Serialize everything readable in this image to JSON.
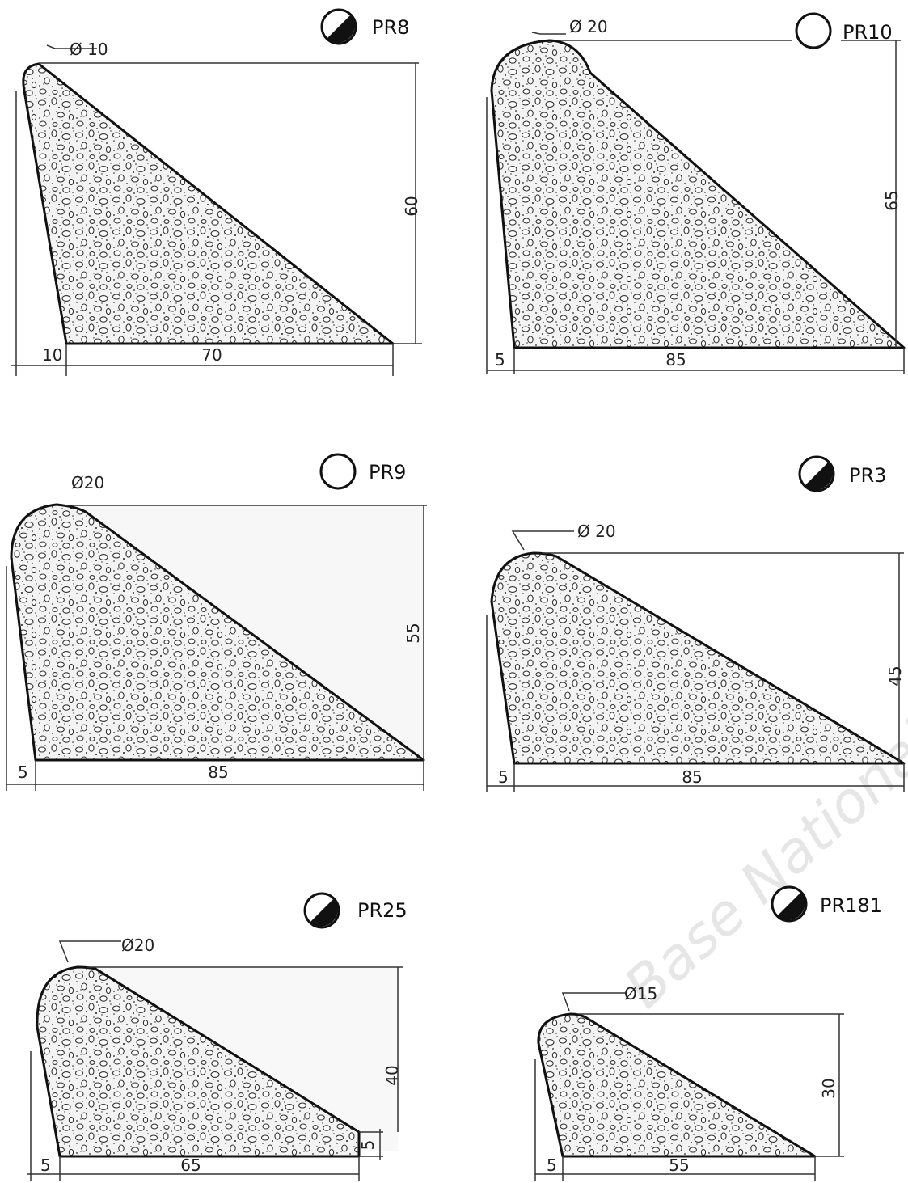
{
  "watermark": "Base Nationale",
  "profiles": [
    {
      "code": "PR8",
      "finish": "half",
      "radius_label": "Ø 10",
      "height_label": "60",
      "base_label": "70",
      "offset_label": "10"
    },
    {
      "code": "PR10",
      "finish": "empty",
      "radius_label": "Ø 20",
      "height_label": "65",
      "base_label": "85",
      "offset_label": "5"
    },
    {
      "code": "PR9",
      "finish": "empty",
      "radius_label": "Ø20",
      "height_label": "55",
      "base_label": "85",
      "offset_label": "5"
    },
    {
      "code": "PR3",
      "finish": "half",
      "radius_label": "Ø 20",
      "height_label": "45",
      "base_label": "85",
      "offset_label": "5"
    },
    {
      "code": "PR25",
      "finish": "half",
      "radius_label": "Ø20",
      "height_label": "40",
      "base_label": "65",
      "offset_label": "5",
      "tip_label": "5"
    },
    {
      "code": "PR181",
      "finish": "half",
      "radius_label": "Ø15",
      "height_label": "30",
      "base_label": "55",
      "offset_label": "5"
    }
  ]
}
